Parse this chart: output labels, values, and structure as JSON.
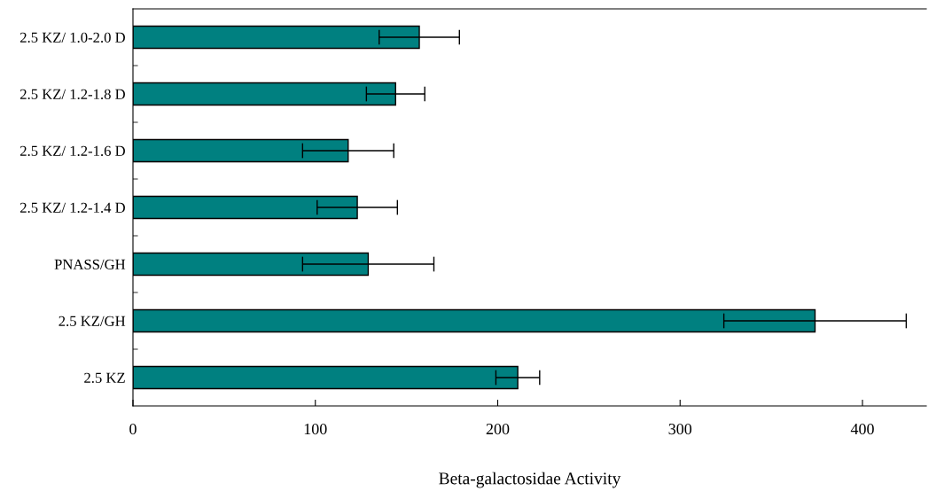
{
  "chart_data": {
    "type": "bar",
    "orientation": "horizontal",
    "xlabel": "Beta-galactosidae Activity",
    "categories": [
      "2.5 KZ/ 1.0-2.0 D",
      "2.5 KZ/ 1.2-1.8 D",
      "2.5 KZ/ 1.2-1.6 D",
      "2.5 KZ/ 1.2-1.4 D",
      "PNASS/GH",
      "2.5 KZ/GH",
      "2.5 KZ"
    ],
    "values": [
      157,
      144,
      118,
      123,
      129,
      374,
      211
    ],
    "errors": [
      22,
      16,
      25,
      22,
      36,
      50,
      12
    ],
    "color": "#008080",
    "xlim": [
      0,
      435
    ],
    "xticks": [
      0,
      100,
      200,
      300,
      400
    ],
    "grid": false,
    "legend": false
  }
}
